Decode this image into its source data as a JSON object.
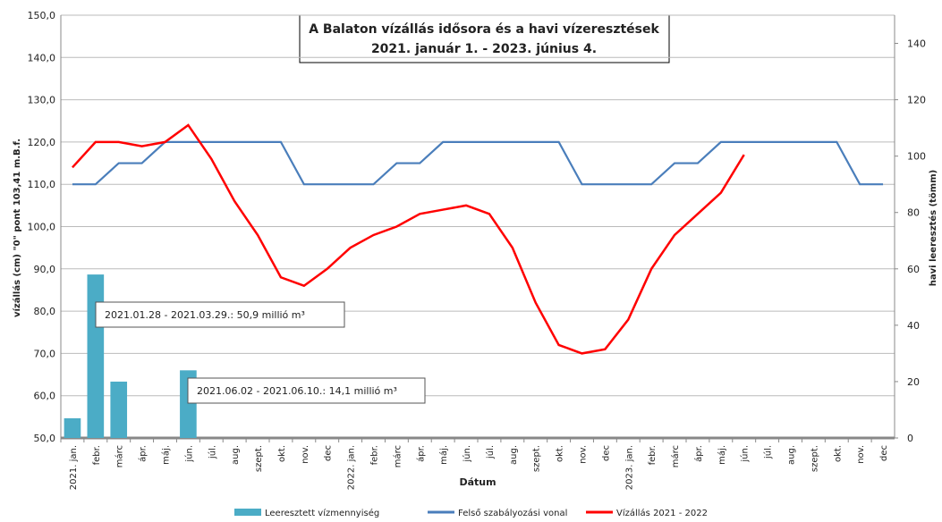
{
  "chart_data": {
    "type": "combo",
    "title": [
      "A Balaton vízállás idősora és a havi vízeresztések",
      "2021. január 1. - 2023. június  4."
    ],
    "x_label": "Dátum",
    "y_label": "vízállás  (cm)   \"0\" pont 103,41 m.B.f.",
    "y2_label": "havi leeresztés  (tömm)",
    "categories": [
      "2021. jan.",
      "febr.",
      "márc",
      "ápr.",
      "máj.",
      "jún.",
      "júl.",
      "aug.",
      "szept.",
      "okt.",
      "nov.",
      "dec",
      "2022. jan.",
      "febr.",
      "márc",
      "ápr.",
      "máj.",
      "jún.",
      "júl.",
      "aug.",
      "szept.",
      "okt.",
      "nov.",
      "dec",
      "2023. jan.",
      "febr.",
      "márc",
      "ápr.",
      "máj.",
      "jún.",
      "júl.",
      "aug.",
      "szept.",
      "okt.",
      "nov.",
      "dec"
    ],
    "series": [
      {
        "name": "Leeresztett vízmennyiség",
        "type": "bar",
        "axis": "y2",
        "color": "#4bacc6",
        "values": [
          7,
          58,
          20,
          null,
          null,
          24,
          null,
          null,
          null,
          null,
          null,
          null,
          null,
          null,
          null,
          null,
          null,
          null,
          null,
          null,
          null,
          null,
          null,
          null,
          null,
          null,
          null,
          null,
          null,
          null,
          null,
          null,
          null,
          null,
          null,
          null
        ]
      },
      {
        "name": "Felső szabályozási vonal",
        "type": "line",
        "color": "#4a7ebb",
        "values": [
          110,
          110,
          115,
          115,
          120,
          120,
          120,
          120,
          120,
          120,
          110,
          110,
          110,
          110,
          115,
          115,
          120,
          120,
          120,
          120,
          120,
          120,
          110,
          110,
          110,
          110,
          115,
          115,
          120,
          120,
          120,
          120,
          120,
          120,
          110,
          110
        ]
      },
      {
        "name": "Vízállás 2021 - 2022",
        "type": "line",
        "color": "#ff0000",
        "values": [
          114,
          120,
          120,
          119,
          120,
          124,
          116,
          106,
          98,
          88,
          86,
          90,
          95,
          98,
          100,
          103,
          104,
          105,
          103,
          95,
          82,
          72,
          70,
          71,
          78,
          90,
          98,
          103,
          108,
          117,
          null,
          null,
          null,
          null,
          null,
          null
        ]
      }
    ],
    "annotations": [
      "2021.01.28  - 2021.03.29.: 50,9 millió m³",
      "2021.06.02  - 2021.06.10.: 14,1 millió m³"
    ],
    "ylim": [
      50,
      150
    ],
    "yticks": [
      {
        "value": 50,
        "label": "50,0"
      },
      {
        "value": 60,
        "label": "60,0"
      },
      {
        "value": 70,
        "label": "70,0"
      },
      {
        "value": 80,
        "label": "80,0"
      },
      {
        "value": 90,
        "label": "90,0"
      },
      {
        "value": 100,
        "label": "100,0"
      },
      {
        "value": 110,
        "label": "110,0"
      },
      {
        "value": 120,
        "label": "120,0"
      },
      {
        "value": 130,
        "label": "130,0"
      },
      {
        "value": 140,
        "label": "140,0"
      },
      {
        "value": 150,
        "label": "150,0"
      }
    ],
    "y2lim": [
      0,
      150
    ],
    "y2ticks": [
      0,
      20,
      40,
      60,
      80,
      100,
      120,
      140
    ],
    "grid": true
  }
}
